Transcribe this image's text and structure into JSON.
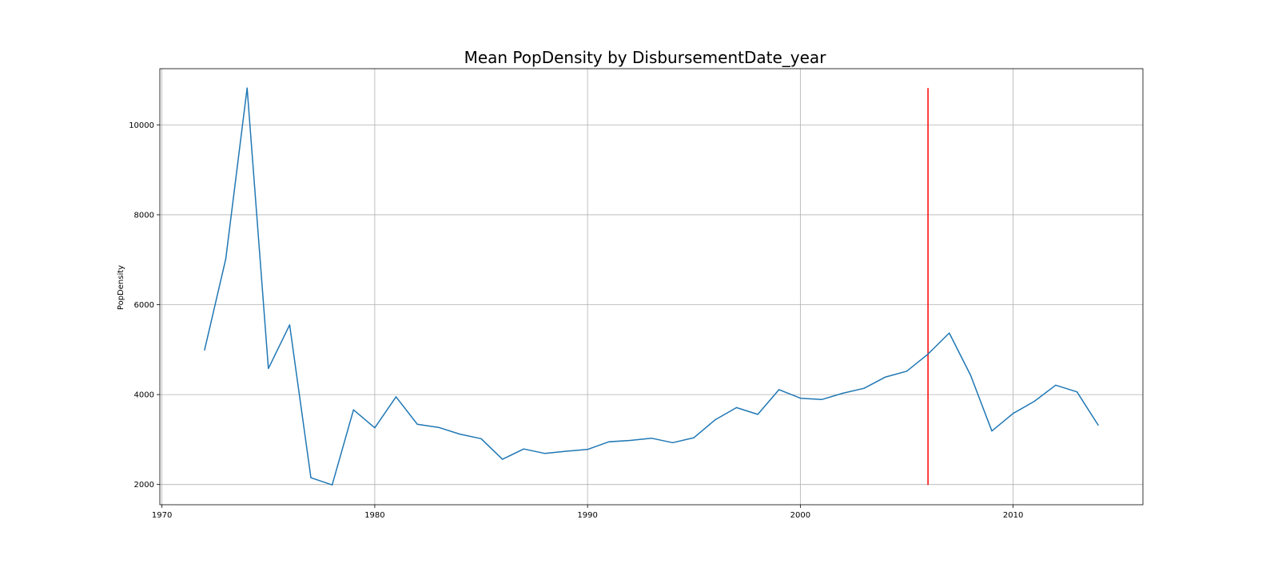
{
  "chart_data": {
    "type": "line",
    "title": "Mean PopDensity by DisbursementDate_year",
    "xlabel": "",
    "ylabel": "PopDensity",
    "xlim": [
      1969.9,
      2016.1
    ],
    "ylim": [
      1550,
      11250
    ],
    "xticks": [
      1970,
      1980,
      1990,
      2000,
      2010
    ],
    "yticks": [
      2000,
      4000,
      6000,
      8000,
      10000
    ],
    "grid": true,
    "series": [
      {
        "color": "#1f77b4",
        "x": [
          1972,
          1973,
          1974,
          1975,
          1976,
          1977,
          1978,
          1979,
          1980,
          1981,
          1982,
          1983,
          1984,
          1985,
          1986,
          1987,
          1988,
          1989,
          1990,
          1991,
          1992,
          1993,
          1994,
          1995,
          1996,
          1997,
          1998,
          1999,
          2000,
          2001,
          2002,
          2003,
          2004,
          2005,
          2006,
          2007,
          2008,
          2009,
          2010,
          2011,
          2012,
          2013,
          2014
        ],
        "y": [
          4990,
          7020,
          10820,
          4580,
          5550,
          2150,
          1990,
          3660,
          3260,
          3950,
          3340,
          3270,
          3120,
          3020,
          2560,
          2790,
          2690,
          2740,
          2780,
          2950,
          2980,
          3030,
          2930,
          3040,
          3440,
          3710,
          3560,
          4110,
          3920,
          3890,
          4030,
          4140,
          4390,
          4520,
          4900,
          5370,
          4430,
          3190,
          3580,
          3850,
          4210,
          4060,
          3320
        ]
      }
    ],
    "reference_lines": [
      {
        "orientation": "vertical",
        "x": 2006,
        "y_range": [
          1990,
          10820
        ],
        "color": "#ff0000"
      }
    ]
  }
}
